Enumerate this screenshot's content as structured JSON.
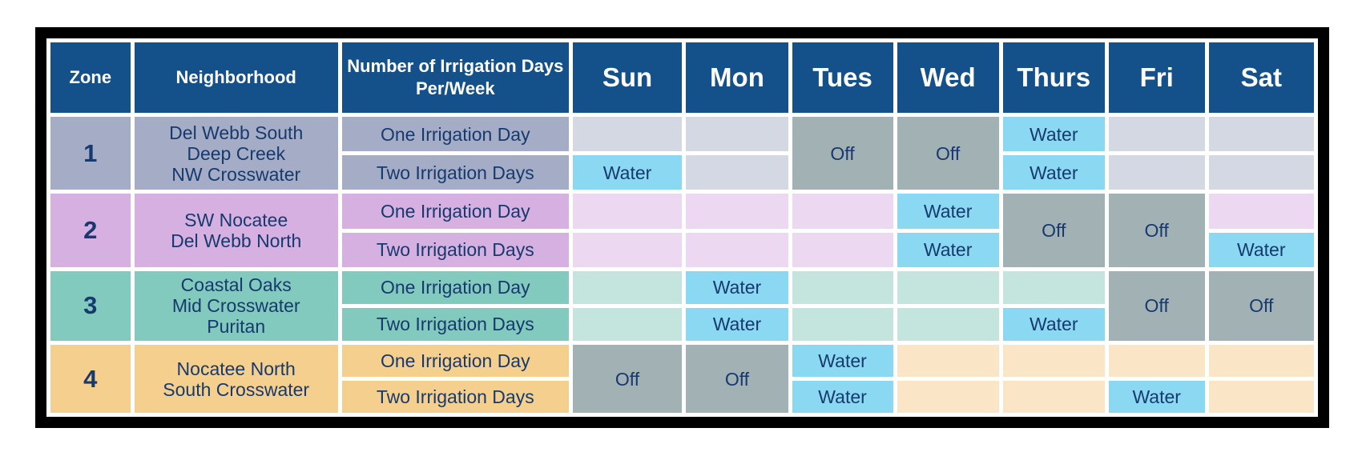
{
  "headers": {
    "zone": "Zone",
    "neighborhood": "Neighborhood",
    "days_per_week": "Number of Irrigation Days Per/Week",
    "days": [
      "Sun",
      "Mon",
      "Tues",
      "Wed",
      "Thurs",
      "Fri",
      "Sat"
    ]
  },
  "labels": {
    "one_day": "One Irrigation Day",
    "two_days": "Two Irrigation Days",
    "water": "Water",
    "off": "Off"
  },
  "zones": [
    {
      "zone": "1",
      "neighborhoods": [
        "Del Webb South",
        "Deep Creek",
        "NW Crosswater"
      ],
      "off_days": [
        "Tues",
        "Wed"
      ],
      "one_day_water": [
        "Thurs"
      ],
      "two_day_water": [
        "Sun",
        "Thurs"
      ],
      "colors": {
        "dark": "#a5adc6",
        "light": "#d3d8e2"
      }
    },
    {
      "zone": "2",
      "neighborhoods": [
        "SW Nocatee",
        "Del Webb North"
      ],
      "off_days": [
        "Thurs",
        "Fri"
      ],
      "one_day_water": [
        "Wed"
      ],
      "two_day_water": [
        "Wed",
        "Sat"
      ],
      "colors": {
        "dark": "#d5b0e0",
        "light": "#ecd9f1"
      }
    },
    {
      "zone": "3",
      "neighborhoods": [
        "Coastal Oaks",
        "Mid Crosswater",
        "Puritan"
      ],
      "off_days": [
        "Fri",
        "Sat"
      ],
      "one_day_water": [
        "Mon"
      ],
      "two_day_water": [
        "Mon",
        "Thurs"
      ],
      "colors": {
        "dark": "#82cabd",
        "light": "#c4e5de"
      }
    },
    {
      "zone": "4",
      "neighborhoods": [
        "Nocatee North",
        "South Crosswater"
      ],
      "off_days": [
        "Sun",
        "Mon"
      ],
      "one_day_water": [
        "Tues"
      ],
      "two_day_water": [
        "Tues",
        "Fri"
      ],
      "colors": {
        "dark": "#f5cf8e",
        "light": "#fae6c7"
      }
    }
  ]
}
